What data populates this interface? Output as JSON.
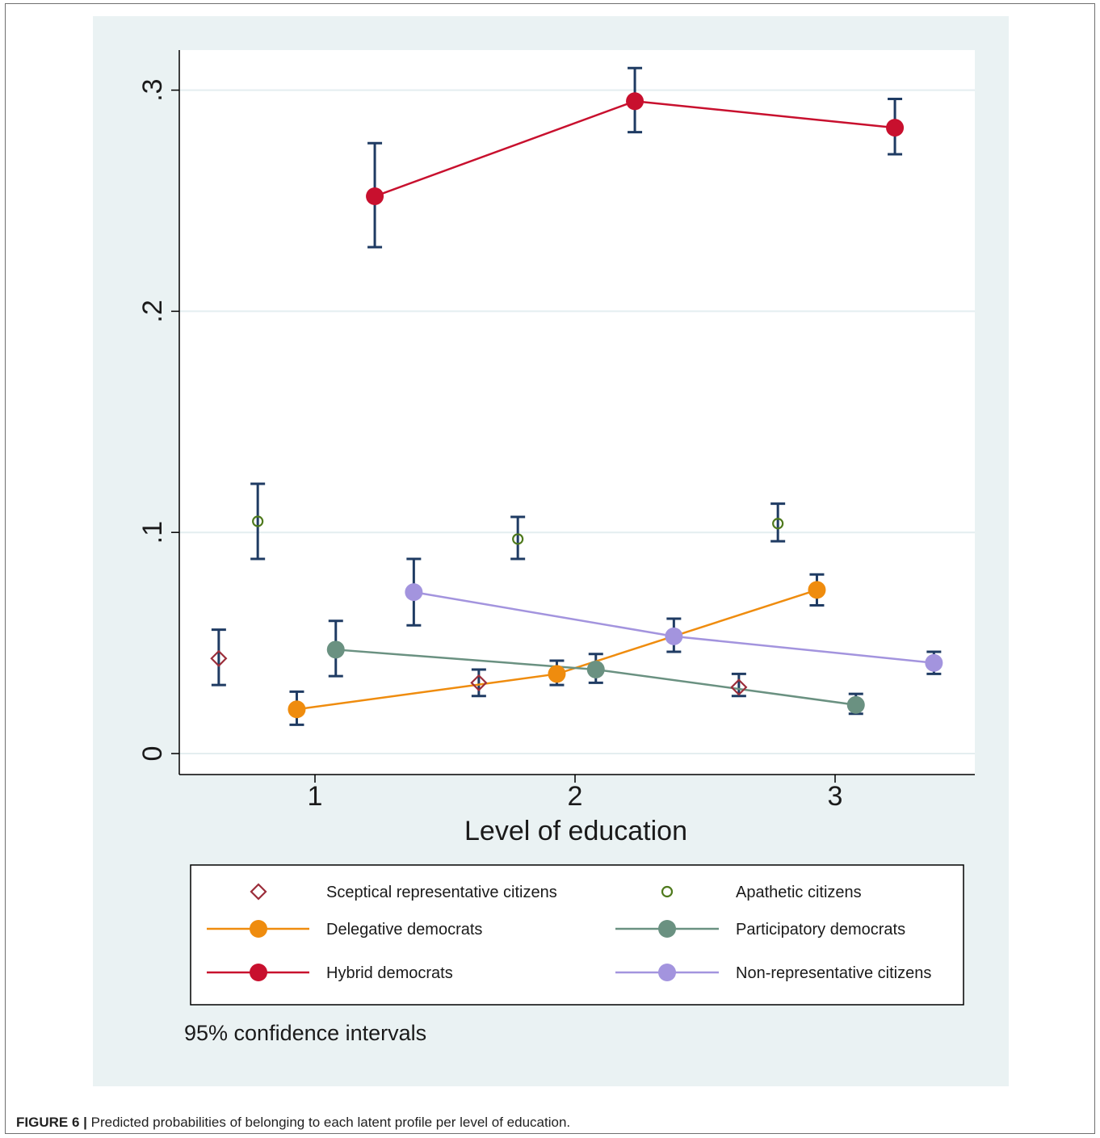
{
  "figure_label": "FIGURE 6 |",
  "caption_text": "Predicted probabilities of belonging to each latent profile per level of education.",
  "chart_data": {
    "type": "scatter",
    "xlabel": "Level of education",
    "ylabel": "",
    "x_ticks": [
      "1",
      "2",
      "3"
    ],
    "y_ticks": [
      "0",
      ".1",
      ".2",
      ".3"
    ],
    "ylim": [
      0,
      0.32
    ],
    "grid": true,
    "legend_position": "bottom",
    "note": "95% confidence intervals",
    "series": [
      {
        "name": "Sceptical representative citizens",
        "marker": "diamond",
        "color": "#9b2d3a",
        "connected": false,
        "x": [
          0.63,
          1.63,
          2.63
        ],
        "y": [
          0.043,
          0.032,
          0.03
        ],
        "ci_low": [
          0.031,
          0.026,
          0.026
        ],
        "ci_high": [
          0.056,
          0.038,
          0.036
        ]
      },
      {
        "name": "Apathetic citizens",
        "marker": "hollow-circle",
        "color": "#4f7a1d",
        "connected": false,
        "x": [
          0.78,
          1.78,
          2.78
        ],
        "y": [
          0.105,
          0.097,
          0.104
        ],
        "ci_low": [
          0.088,
          0.088,
          0.096
        ],
        "ci_high": [
          0.122,
          0.107,
          0.113
        ]
      },
      {
        "name": "Delegative democrats",
        "marker": "circle",
        "color": "#ef8c0e",
        "connected": true,
        "x": [
          0.93,
          1.93,
          2.93
        ],
        "y": [
          0.02,
          0.036,
          0.074
        ],
        "ci_low": [
          0.013,
          0.031,
          0.067
        ],
        "ci_high": [
          0.028,
          0.042,
          0.081
        ]
      },
      {
        "name": "Participatory democrats",
        "marker": "circle",
        "color": "#6a9181",
        "connected": true,
        "x": [
          1.08,
          2.08,
          3.08
        ],
        "y": [
          0.047,
          0.038,
          0.022
        ],
        "ci_low": [
          0.035,
          0.032,
          0.018
        ],
        "ci_high": [
          0.06,
          0.045,
          0.027
        ]
      },
      {
        "name": "Hybrid democrats",
        "marker": "circle",
        "color": "#c8102e",
        "connected": true,
        "x": [
          1.23,
          2.23,
          3.23
        ],
        "y": [
          0.252,
          0.295,
          0.283
        ],
        "ci_low": [
          0.229,
          0.281,
          0.271
        ],
        "ci_high": [
          0.276,
          0.31,
          0.296
        ]
      },
      {
        "name": "Non-representative citizens",
        "marker": "circle",
        "color": "#a394de",
        "connected": true,
        "x": [
          1.38,
          2.38,
          3.38
        ],
        "y": [
          0.073,
          0.053,
          0.041
        ],
        "ci_low": [
          0.058,
          0.046,
          0.036
        ],
        "ci_high": [
          0.088,
          0.061,
          0.046
        ]
      }
    ]
  }
}
